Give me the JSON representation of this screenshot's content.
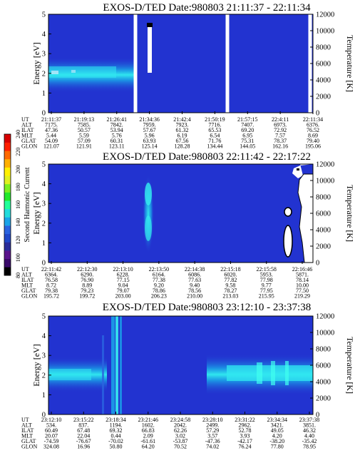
{
  "chart_data": [
    {
      "type": "heatmap",
      "title": "EXOS-D/TED   Date:980803  21:11:37 - 22:11:34",
      "ylabel": "Energy [eV]",
      "y2label": "Temperature [K]",
      "ylim": [
        0,
        5
      ],
      "y2lim": [
        0,
        12000
      ],
      "yticks": [
        "0",
        "1",
        "2",
        "3",
        "4",
        "5"
      ],
      "y2ticks": [
        "0",
        "2000",
        "4000",
        "6000",
        "8000",
        "10000",
        "12000"
      ],
      "ephemeris_labels": [
        "UT",
        "ALT",
        "ILAT",
        "MLT",
        "GLAT",
        "GLON"
      ],
      "ephemeris": [
        [
          "21:11:37",
          "7175.",
          "47.36",
          "5.44",
          "54.09",
          "121.07"
        ],
        [
          "21:19:13",
          "7585.",
          "50.57",
          "5.59",
          "57.09",
          "121.91"
        ],
        [
          "21:26:41",
          "7842.",
          "53.94",
          "5.76",
          "60.31",
          "123.11"
        ],
        [
          "21:34:36",
          "7959.",
          "57.67",
          "5.96",
          "63.93",
          "125.14"
        ],
        [
          "21:42:4",
          "7923.",
          "61.32",
          "6.19",
          "67.56",
          "128.28"
        ],
        [
          "21:50:19",
          "7716.",
          "65.53",
          "6.54",
          "71.76",
          "134.44"
        ],
        [
          "21:57:15",
          "7407.",
          "69.20",
          "6.95",
          "75.31",
          "144.05"
        ],
        [
          "22:4:11",
          "6973.",
          "72.92",
          "7.57",
          "78.37",
          "162.16"
        ],
        [
          "22:11:34",
          "6376.",
          "76.52",
          "8.69",
          "79.40",
          "195.06"
        ]
      ],
      "data_gaps_fraction": [
        [
          0.538,
          0.551
        ],
        [
          0.737,
          0.749
        ],
        [
          0.942,
          0.955
        ]
      ],
      "features": "broad enhancement centred near 2.2 eV from 21:11 to 21:27; narrow spike near 3 eV at 21:36"
    },
    {
      "type": "heatmap",
      "title": "EXOS-D/TED   Date:980803  22:11:42 - 22:17:22",
      "ylabel": "Energy [eV]",
      "y2label": "Temperature [K]",
      "ylim": [
        0,
        5
      ],
      "y2lim": [
        0,
        12000
      ],
      "yticks": [
        "0",
        "1",
        "2",
        "3",
        "4",
        "5"
      ],
      "y2ticks": [
        "0",
        "2000",
        "4000",
        "6000",
        "8000",
        "10000",
        "12000"
      ],
      "ephemeris_labels": [
        "UT",
        "ALT",
        "ILAT",
        "MLT",
        "GLAT",
        "GLON"
      ],
      "ephemeris": [
        [
          "22:11:42",
          "6364.",
          "76.58",
          "8.72",
          "79.38",
          "195.72"
        ],
        [
          "22:12:30",
          "6290.",
          "76.90",
          "8.89",
          "79.23",
          "199.72"
        ],
        [
          "22:13:10",
          "6228.",
          "77.15",
          "9.04",
          "79.07",
          "203.00"
        ],
        [
          "22:13:50",
          "6164.",
          "77.38",
          "9.20",
          "78.86",
          "206.23"
        ],
        [
          "22:14:38",
          "6086.",
          "77.63",
          "9.40",
          "78.56",
          "210.00"
        ],
        [
          "22:15:18",
          "6020.",
          "77.82",
          "9.58",
          "78.27",
          "213.03"
        ],
        [
          "22:15:58",
          "5953.",
          "77.98",
          "9.77",
          "77.95",
          "215.95"
        ],
        [
          "22:16:46",
          "5871.",
          "78.14",
          "10.00",
          "77.50",
          "219.29"
        ]
      ],
      "features": "vertical enhancement at 22:13:50; high-intensity (white) region above 22:16:30"
    },
    {
      "type": "heatmap",
      "title": "EXOS-D/TED   Date:980803  23:12:10 - 23:37:38",
      "ylabel": "Energy [eV]",
      "y2label": "Temperature [K]",
      "ylim": [
        0,
        5
      ],
      "y2lim": [
        0,
        12000
      ],
      "yticks": [
        "0",
        "1",
        "2",
        "3",
        "4",
        "5"
      ],
      "y2ticks": [
        "0",
        "2000",
        "4000",
        "6000",
        "8000",
        "10000",
        "12000"
      ],
      "ephemeris_labels": [
        "UT",
        "ALT",
        "ILAT",
        "MLT",
        "GLAT",
        "GLON"
      ],
      "ephemeris": [
        [
          "23:12:10",
          "534.",
          "60.49",
          "20.07",
          "-74.59",
          "324.08"
        ],
        [
          "23:15:22",
          "837.",
          "67.48",
          "22.04",
          "-76.67",
          "16.96"
        ],
        [
          "23:18:34",
          "1194.",
          "69.32",
          "0.44",
          "-70.02",
          "50.80"
        ],
        [
          "23:21:46",
          "1602.",
          "66.83",
          "2.09",
          "-61.61",
          "64.20"
        ],
        [
          "23:24:58",
          "2042.",
          "62.26",
          "3.02",
          "-53.87",
          "70.52"
        ],
        [
          "23:28:10",
          "2499.",
          "57.29",
          "3.57",
          "-47.36",
          "74.02"
        ],
        [
          "23:31:22",
          "2962.",
          "52.78",
          "3.93",
          "-42.17",
          "76.24"
        ],
        [
          "23:34:34",
          "3421.",
          "49.05",
          "4.20",
          "-38.20",
          "77.80"
        ],
        [
          "23:37:38",
          "3851.",
          "46.32",
          "4.40",
          "-35.42",
          "78.95"
        ]
      ],
      "features": "enhancement band 1.5-2.7 eV from 23:12 to 23:16 and from 23:27 to 23:37; broadband vertical stripes near 23:17-23:18"
    }
  ],
  "colorbar": {
    "label": "Second Harmonic Current",
    "ticks": [
      "80",
      "100",
      "120",
      "140",
      "160",
      "180",
      "200",
      "220",
      "240"
    ],
    "colors": [
      "#000000",
      "#3a0a6a",
      "#5a148c",
      "#2a2c9a",
      "#2048c8",
      "#2a64e0",
      "#1aa4e8",
      "#22dcdc",
      "#20ff9a",
      "#22e82a",
      "#7cf020",
      "#e0f020",
      "#fff000",
      "#ffb000",
      "#ff6a00",
      "#ff2000",
      "#d80000"
    ]
  }
}
